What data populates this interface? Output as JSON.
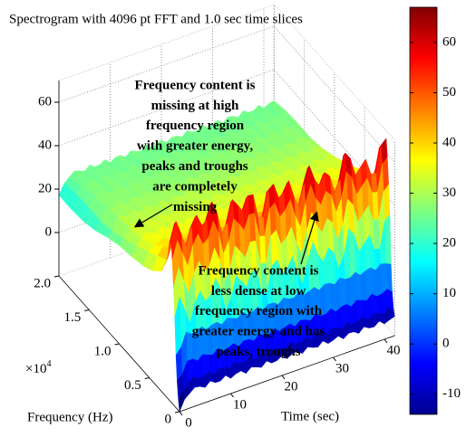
{
  "chart_data": {
    "type": "surface",
    "title": "Spectrogram with 4096 pt FFT and 1.0 sec time slices",
    "xlabel": "Time (sec)",
    "ylabel": "Frequency (Hz)",
    "y_scale_label": "×10",
    "y_scale_exponent": "4",
    "xlim": [
      0,
      42
    ],
    "xticks": [
      0,
      10,
      20,
      30,
      40
    ],
    "ylim": [
      0,
      20000
    ],
    "yticks": [
      0,
      {
        "value": 5000,
        "label": "0.5"
      },
      {
        "value": 10000,
        "label": "1.0"
      },
      {
        "value": 15000,
        "label": "1.5"
      },
      {
        "value": 20000,
        "label": "2.0"
      }
    ],
    "zlim": [
      -20,
      70
    ],
    "zticks": [
      0,
      20,
      40,
      60
    ],
    "clim": [
      -14,
      67
    ],
    "cticks": [
      -10,
      0,
      10,
      20,
      30,
      40,
      50,
      60
    ],
    "colormap": "jet",
    "grid": true,
    "annotations": [
      {
        "lines": [
          "Frequency content is",
          "missing at high",
          "frequency region",
          "with greater energy,",
          "peaks and troughs",
          "are completely",
          "missing"
        ]
      },
      {
        "lines": [
          "Frequency content is",
          "less dense at low",
          "frequency region with",
          "greater energy and has",
          "peaks, troughs"
        ]
      }
    ]
  }
}
